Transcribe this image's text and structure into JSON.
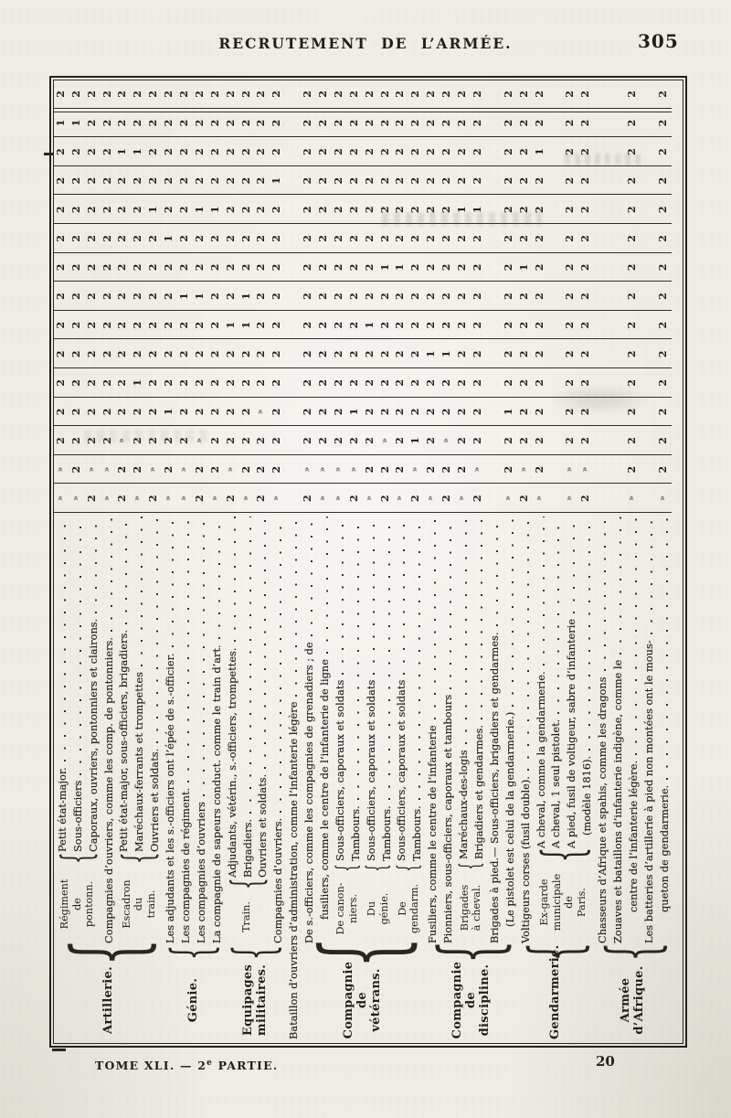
{
  "page": {
    "header_title": "RECRUTEMENT DE L’ARMÉE.",
    "page_number": "305",
    "footer_volume_1": "TOME XLI. — 2",
    "footer_volume_sup": "e",
    "footer_volume_2": " PARTIE.",
    "footer_sheet_number": "20"
  },
  "table": {
    "orientation": "rotated-90-clockwise-to-read",
    "columns": 15,
    "ditto_char": "»",
    "ink_color": "#211f1b",
    "paper_color": "#efece5",
    "groups": [
      {
        "name": [
          "Artillerie."
        ],
        "blocks": [
          {
            "side": [
              "Régiment",
              "de",
              "pontonn."
            ],
            "sidew": 86,
            "rows": [
              {
                "text": "Petit état-major.",
                "dots": true,
                "values": "»»2222222222212"
              },
              {
                "text": "Sous-officiers",
                "dots": true,
                "values": "»22222222222212"
              },
              {
                "text": "Caporaux, ouvriers, pontonniers et clairons.",
                "dots": true,
                "values": "2»2222222222222"
              }
            ]
          },
          {
            "rows": [
              {
                "text": "Compagnies d’ouvriers, comme les comp. de pontonniers.",
                "dots": true,
                "values": "»»2222222222222"
              }
            ]
          },
          {
            "side": [
              "Escadron",
              "du",
              "train."
            ],
            "sidew": 86,
            "rows": [
              {
                "text": "Petit état-major, sous-officiers, brigadiers.",
                "dots": true,
                "values": "22»222222222122"
              },
              {
                "text": "Maréchaux-ferrants et trompettes",
                "dots": true,
                "values": "»22212222222122"
              },
              {
                "text": "Ouvriers et soldats.",
                "dots": true,
                "values": "2»2222222212222"
              }
            ]
          }
        ]
      },
      {
        "name": [
          "Génie."
        ],
        "blocks": [
          {
            "rows": [
              {
                "text": "Les adjudants et les s.-officiers ont l’épée de s.-officier.",
                "dots": true,
                "values": "»22122222122222"
              },
              {
                "text": "Les compagnies de régiment.",
                "dots": true,
                "values": "»»2222212222222"
              },
              {
                "text": "Les compagnies d’ouvriers",
                "dots": true,
                "values": "22»222212212222"
              },
              {
                "text": "La compagnie de sapeurs conduct. comme le train d’art.",
                "dots": true,
                "values": "»22222222212222"
              }
            ]
          }
        ]
      },
      {
        "name": [
          "Equipages",
          "militaires."
        ],
        "blocks": [
          {
            "side": [
              "Train."
            ],
            "sidew": 58,
            "rows": [
              {
                "text": "Adjudants, vétérin., s.-officiers, trompettes.",
                "dots": true,
                "values": "2»2222122222222"
              },
              {
                "text": "Brigadiers.",
                "dots": true,
                "values": "»22222112222222"
              },
              {
                "text": "Ouvriers et soldats.",
                "dots": true,
                "values": "222»22222222222"
              }
            ]
          },
          {
            "rows": [
              {
                "text": "Compagnies d’ouvriers.",
                "dots": true,
                "values": "»22222222221222"
              }
            ]
          }
        ]
      },
      {
        "name": [],
        "blocks": [
          {
            "rows": [
              {
                "text": "Bataillon d’ouvriers d’administration, comme l’infanterie légère",
                "dots": true,
                "values": ""
              }
            ]
          }
        ]
      },
      {
        "name": [
          "Compagnie",
          "de vétérans."
        ],
        "blocks": [
          {
            "rows": [
              {
                "text": "De s.-officiers, comme les compagnies de grenadiers ; de",
                "dots": true,
                "values": "2»2222222222222"
              },
              {
                "text": "fusiliers, comme le centre de l’infanterie de ligne",
                "dots": true,
                "indent": 26,
                "values": "»»2222222222222"
              }
            ]
          },
          {
            "side": [
              "De canon-",
              "niers."
            ],
            "sidew": 76,
            "rows": [
              {
                "text": "Sous-officiers, caporaux et soldats",
                "dots": true,
                "values": "»»2222222222222"
              },
              {
                "text": "Tambours.",
                "dots": true,
                "values": "2»2122222222222"
              }
            ]
          },
          {
            "side": [
              "Du",
              "génie."
            ],
            "sidew": 76,
            "rows": [
              {
                "text": "Sous-officiers, caporaux et soldats",
                "dots": true,
                "values": "»22222122222222"
              },
              {
                "text": "Tambours.",
                "dots": true,
                "values": "22»222221222222"
              }
            ]
          },
          {
            "side": [
              "De",
              "gendarm."
            ],
            "sidew": 76,
            "rows": [
              {
                "text": "Sous-officiers, caporaux et soldats",
                "dots": true,
                "values": "»22222221222222"
              },
              {
                "text": "Tambours.",
                "dots": true,
                "values": "2»1222222222222"
              }
            ]
          }
        ]
      },
      {
        "name": [
          "Compagnie",
          "de discipline."
        ],
        "blocks": [
          {
            "rows": [
              {
                "text": "Fusiliers, comme le centre de l’infanterie",
                "dots": true,
                "values": "»22221222222222"
              },
              {
                "text": "Pionniers, sous-officiers, caporaux et tambours",
                "dots": true,
                "values": "22»221222222222"
              }
            ]
          },
          {
            "side": [
              "Brigades",
              "à cheval."
            ],
            "sidew": 78,
            "rows": [
              {
                "text": "Maréchaux-des-logis",
                "dots": true,
                "values": "»22222222212222"
              },
              {
                "text": "Brigadiers et gendarmes.",
                "dots": true,
                "values": "2»2222222212222"
              }
            ]
          },
          {
            "rows": [
              {
                "text": "Brigades à pied.— Sous-officiers, brigadiers et gendarmes.",
                "dots": true,
                "values": ""
              },
              {
                "text": "(Le pistolet est celui de la gendarmerie.)",
                "dots": true,
                "indent": 18,
                "values": "»22122222222222"
              }
            ]
          }
        ]
      },
      {
        "name": [
          "Gendarmerie."
        ],
        "blocks": [
          {
            "rows": [
              {
                "text": "Voltigeurs corses (fusil double).",
                "dots": true,
                "values": "2»2222221222222"
              }
            ]
          },
          {
            "side": [
              "Ex-garde",
              "municipale",
              "de",
              "Paris."
            ],
            "sidew": 90,
            "rows": [
              {
                "text": "A cheval, comme la gendarmerie.",
                "dots": true,
                "values": "»22222222222122"
              },
              {
                "text": "A cheval, 1 seul pistolet.",
                "dots": true,
                "values": ""
              },
              {
                "text": "A pied, fusil de voltigeur, sabre d’infanterie",
                "dots": true,
                "values": "»»2222222222222"
              },
              {
                "text": "(modèle 1816).",
                "dots": true,
                "indent": 14,
                "values": "2»2222222222222"
              }
            ]
          }
        ]
      },
      {
        "name": [
          "Armée",
          "d’Afrique."
        ],
        "blocks": [
          {
            "rows": [
              {
                "text": "Chasseurs d’Afrique et spahis, comme les dragons",
                "dots": true,
                "values": ""
              },
              {
                "text": "Zouaves et bataillons d’infanterie indigène, comme le",
                "dots": true,
                "values": ""
              },
              {
                "text": "centre de l’infanterie légère.",
                "dots": true,
                "indent": 34,
                "values": "»22222222222222"
              },
              {
                "text": "Les batteries d’artillerie à pied non montées ont le mous-",
                "dots": true,
                "values": ""
              },
              {
                "text": "queton de gendarmerie.",
                "dots": true,
                "indent": 34,
                "values": "»22222222222222"
              }
            ]
          }
        ]
      }
    ]
  }
}
